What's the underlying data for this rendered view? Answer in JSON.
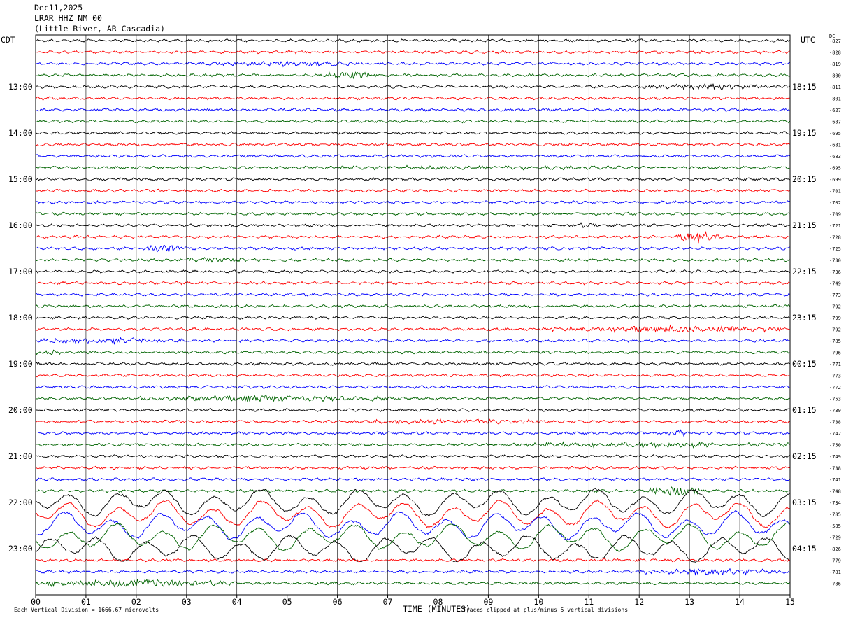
{
  "header": {
    "date": "Dec11,2025",
    "station": "LRAR HHZ NM 00",
    "location": "(Little River, AR Cascadia)"
  },
  "left_tz": "CDT",
  "right_tz": "UTC",
  "dc_label": "DC",
  "footer": {
    "scale_note": "Each Vertical Division = 1666.67 microvolts",
    "clip_note": "Traces clipped at plus/minus 5 vertical divisions"
  },
  "colors": {
    "c0": "#000000",
    "c1": "#ff0000",
    "c2": "#0000ff",
    "c3": "#006400",
    "grid": "#000000"
  },
  "chart_data": {
    "type": "line",
    "title": "LRAR HHZ NM 00",
    "xlabel": "TIME (MINUTES)",
    "xlim": [
      0,
      15
    ],
    "x_ticks": [
      "00",
      "01",
      "02",
      "03",
      "04",
      "05",
      "06",
      "07",
      "08",
      "09",
      "10",
      "11",
      "12",
      "13",
      "14",
      "15"
    ],
    "trace_colors_cycle": [
      "black",
      "red",
      "blue",
      "green"
    ],
    "left_hour_labels": [
      "13:00",
      "14:00",
      "15:00",
      "16:00",
      "17:00",
      "18:00",
      "19:00",
      "20:00",
      "21:00",
      "22:00",
      "23:00"
    ],
    "right_hour_labels": [
      "18:15",
      "19:15",
      "20:15",
      "21:15",
      "22:15",
      "23:15",
      "00:15",
      "01:15",
      "02:15",
      "03:15",
      "04:15"
    ],
    "dc_offsets": [
      "-827",
      "-828",
      "-819",
      "-800",
      "-811",
      "-801",
      "-627",
      "-687",
      "-695",
      "-681",
      "-683",
      "-695",
      "-699",
      "-701",
      "-702",
      "-709",
      "-721",
      "-728",
      "-725",
      "-730",
      "-736",
      "-749",
      "-773",
      "-792",
      "-799",
      "-792",
      "-785",
      "-796",
      "-771",
      "-773",
      "-772",
      "-753",
      "-739",
      "-738",
      "-742",
      "-750",
      "-749",
      "-738",
      "-741",
      "-748",
      "-734",
      "-785",
      "-585",
      "-729",
      "-826",
      "-779",
      "-781",
      "-786"
    ],
    "events": [
      {
        "trace": 2,
        "start_min": 3.0,
        "end_min": 7.0,
        "amplitude": 0.5
      },
      {
        "trace": 3,
        "start_min": 5.8,
        "end_min": 6.8,
        "amplitude": 1.0
      },
      {
        "trace": 4,
        "start_min": 11.8,
        "end_min": 15.0,
        "amplitude": 0.7
      },
      {
        "trace": 5,
        "start_min": 0.0,
        "end_min": 0.4,
        "amplitude": 0.5
      },
      {
        "trace": 11,
        "start_min": 6.0,
        "end_min": 12.0,
        "amplitude": 0.4
      },
      {
        "trace": 14,
        "start_min": 1.0,
        "end_min": 1.4,
        "amplitude": 0.4
      },
      {
        "trace": 16,
        "start_min": 10.6,
        "end_min": 11.2,
        "amplitude": 0.5
      },
      {
        "trace": 17,
        "start_min": 12.7,
        "end_min": 13.6,
        "amplitude": 1.5
      },
      {
        "trace": 18,
        "start_min": 2.2,
        "end_min": 3.0,
        "amplitude": 1.2
      },
      {
        "trace": 19,
        "start_min": 2.5,
        "end_min": 4.5,
        "amplitude": 0.6
      },
      {
        "trace": 25,
        "start_min": 10.0,
        "end_min": 15.0,
        "amplitude": 0.8
      },
      {
        "trace": 26,
        "start_min": 0.0,
        "end_min": 3.0,
        "amplitude": 0.7
      },
      {
        "trace": 27,
        "start_min": 0.0,
        "end_min": 0.5,
        "amplitude": 0.8
      },
      {
        "trace": 31,
        "start_min": 2.0,
        "end_min": 7.0,
        "amplitude": 0.7
      },
      {
        "trace": 33,
        "start_min": 6.0,
        "end_min": 10.0,
        "amplitude": 0.6
      },
      {
        "trace": 34,
        "start_min": 12.5,
        "end_min": 13.0,
        "amplitude": 0.8
      },
      {
        "trace": 35,
        "start_min": 9.5,
        "end_min": 15.0,
        "amplitude": 0.7
      },
      {
        "trace": 39,
        "start_min": 12.2,
        "end_min": 13.2,
        "amplitude": 1.5
      },
      {
        "trace": 47,
        "start_min": 0.0,
        "end_min": 4.0,
        "amplitude": 1.0
      },
      {
        "trace": 46,
        "start_min": 12.0,
        "end_min": 15.0,
        "amplitude": 0.8
      }
    ],
    "long_period_traces": {
      "start_trace": 40,
      "end_trace": 44,
      "amplitude": 1.6
    },
    "clip_divisions": 5
  }
}
